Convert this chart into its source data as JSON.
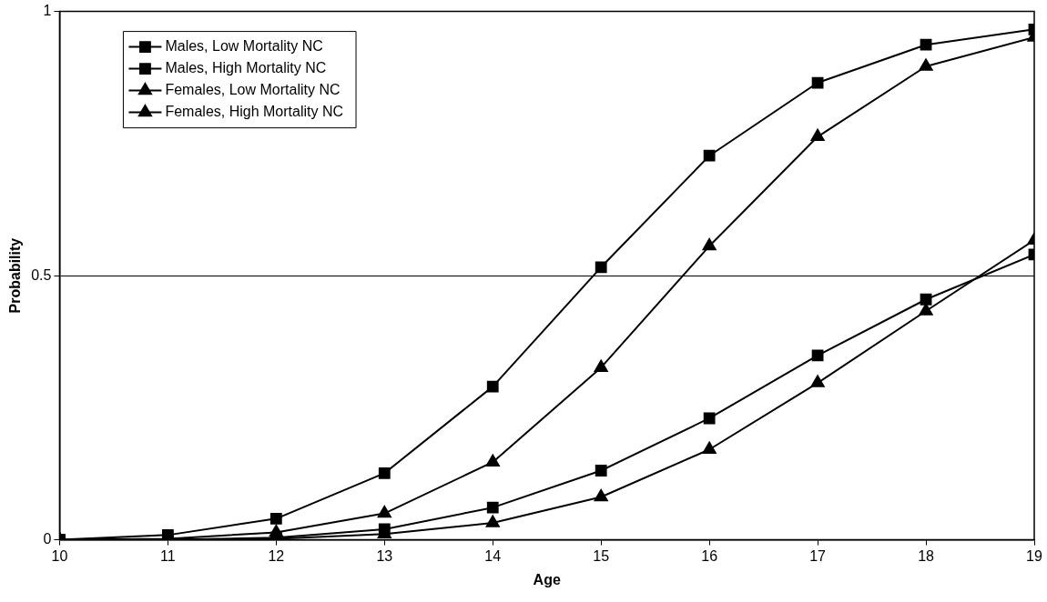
{
  "chart_data": {
    "type": "line",
    "xlabel": "Age",
    "ylabel": "Probability",
    "x": [
      10,
      11,
      12,
      13,
      14,
      15,
      16,
      17,
      18,
      19
    ],
    "xlim": [
      10,
      19
    ],
    "xticks": [
      10,
      11,
      12,
      13,
      14,
      15,
      16,
      17,
      18,
      19
    ],
    "ylim": [
      0,
      1
    ],
    "yticks": [
      0,
      0.5,
      1
    ],
    "grid": "y",
    "legend": "top left",
    "line_style": "solid",
    "series": [
      {
        "name": "Males, Low Mortality NC",
        "color": "#000000",
        "marker": "square",
        "values": [
          0,
          0,
          0.004,
          0.02,
          0.061,
          0.131,
          0.23,
          0.349,
          0.455,
          0.54
        ]
      },
      {
        "name": "Males, High Mortality NC",
        "color": "#000000",
        "marker": "square",
        "values": [
          0,
          0.009,
          0.04,
          0.126,
          0.29,
          0.516,
          0.727,
          0.865,
          0.937,
          0.966
        ]
      },
      {
        "name": "Females, Low Mortality NC",
        "color": "#000000",
        "marker": "triangle",
        "values": [
          0,
          0,
          0.002,
          0.011,
          0.032,
          0.081,
          0.171,
          0.297,
          0.433,
          0.567
        ]
      },
      {
        "name": "Females, High Mortality NC",
        "color": "#000000",
        "marker": "triangle",
        "values": [
          0,
          0.002,
          0.014,
          0.05,
          0.147,
          0.326,
          0.556,
          0.763,
          0.896,
          0.951
        ]
      }
    ]
  }
}
